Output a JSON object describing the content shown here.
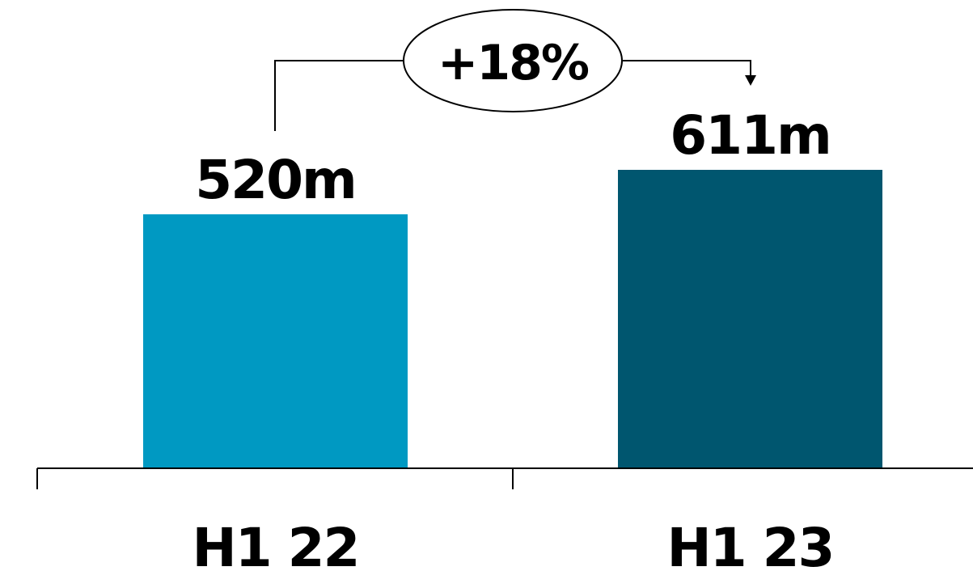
{
  "chart_data": {
    "type": "bar",
    "categories": [
      "H1 22",
      "H1 23"
    ],
    "values": [
      520,
      611
    ],
    "value_labels": [
      "520m",
      "611m"
    ],
    "colors": [
      "#0099C2",
      "#00566F"
    ],
    "title": "",
    "xlabel": "",
    "ylabel": "",
    "ylim": [
      0,
      611
    ],
    "grid": false,
    "annotation": {
      "text": "+18%",
      "from": "H1 22",
      "to": "H1 23"
    }
  }
}
